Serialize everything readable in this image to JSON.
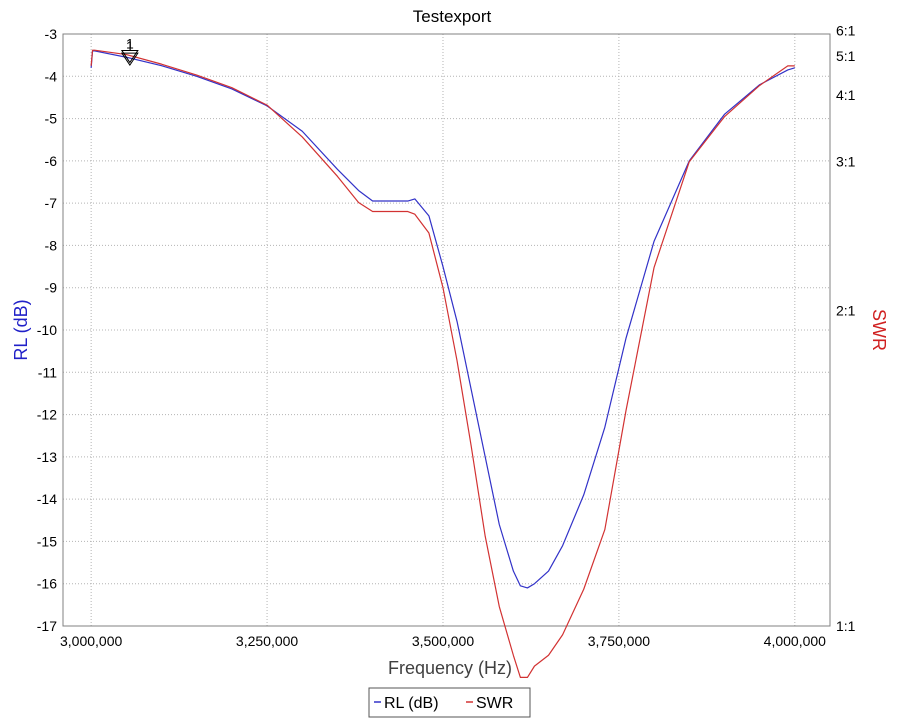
{
  "chart_data": {
    "type": "line",
    "title": "Testexport",
    "xlabel": "Frequency (Hz)",
    "ylabel_left": "RL (dB)",
    "ylabel_right": "SWR",
    "xlim": [
      2960000,
      4050000
    ],
    "ylim_left": [
      -17,
      -3
    ],
    "x_ticks": [
      3000000,
      3250000,
      3500000,
      3750000,
      4000000
    ],
    "x_tick_labels": [
      "3,000,000",
      "3,250,000",
      "3,500,000",
      "3,750,000",
      "4,000,000"
    ],
    "y_ticks_left": [
      -3,
      -4,
      -5,
      -6,
      -7,
      -8,
      -9,
      -10,
      -11,
      -12,
      -13,
      -14,
      -15,
      -16,
      -17
    ],
    "y_tick_labels_left": [
      "-3",
      "-4",
      "-5",
      "-6",
      "-7",
      "-8",
      "-9",
      "-10",
      "-11",
      "-12",
      "-13",
      "-14",
      "-15",
      "-16",
      "-17"
    ],
    "y_ticks_right": [
      6,
      5,
      4,
      3,
      2,
      1
    ],
    "y_tick_labels_right": [
      "6:1",
      "5:1",
      "4:1",
      "3:1",
      "2:1",
      "1:1"
    ],
    "grid": true,
    "legend_position": "bottom-center",
    "markers": [
      {
        "label": "1",
        "x": 3055000,
        "series": "RL (dB)"
      },
      {
        "label": "1",
        "x": 3055000,
        "series": "SWR"
      }
    ],
    "series": [
      {
        "name": "RL (dB)",
        "axis": "left",
        "color": "#3232c8",
        "x": [
          3000000,
          3002000,
          3005000,
          3050000,
          3100000,
          3150000,
          3200000,
          3250000,
          3300000,
          3350000,
          3380000,
          3400000,
          3420000,
          3450000,
          3460000,
          3480000,
          3500000,
          3520000,
          3540000,
          3560000,
          3580000,
          3600000,
          3610000,
          3620000,
          3630000,
          3650000,
          3670000,
          3700000,
          3730000,
          3760000,
          3800000,
          3850000,
          3900000,
          3950000,
          3990000,
          4000000
        ],
        "values": [
          -3.8,
          -3.4,
          -3.4,
          -3.55,
          -3.75,
          -4.0,
          -4.3,
          -4.7,
          -5.3,
          -6.2,
          -6.7,
          -6.95,
          -6.95,
          -6.95,
          -6.9,
          -7.3,
          -8.5,
          -9.8,
          -11.4,
          -13.0,
          -14.6,
          -15.7,
          -16.05,
          -16.1,
          -16.0,
          -15.7,
          -15.1,
          -13.9,
          -12.3,
          -10.2,
          -7.9,
          -6.0,
          -4.9,
          -4.2,
          -3.85,
          -3.8
        ]
      },
      {
        "name": "SWR",
        "axis": "right",
        "color": "#d23232",
        "x": [
          3000000,
          3002000,
          3005000,
          3050000,
          3100000,
          3150000,
          3200000,
          3250000,
          3300000,
          3350000,
          3380000,
          3400000,
          3420000,
          3450000,
          3460000,
          3480000,
          3500000,
          3520000,
          3540000,
          3560000,
          3580000,
          3600000,
          3610000,
          3620000,
          3630000,
          3650000,
          3670000,
          3700000,
          3730000,
          3760000,
          3800000,
          3850000,
          3900000,
          3950000,
          3990000,
          4000000
        ],
        "values": [
          4.7,
          5.2,
          5.2,
          5.05,
          4.75,
          4.45,
          4.15,
          3.8,
          3.3,
          2.85,
          2.62,
          2.55,
          2.55,
          2.55,
          2.53,
          2.4,
          2.1,
          1.82,
          1.6,
          1.44,
          1.35,
          1.3,
          1.28,
          1.28,
          1.29,
          1.3,
          1.32,
          1.37,
          1.45,
          1.68,
          2.2,
          3.0,
          3.6,
          4.2,
          4.7,
          4.7
        ]
      }
    ]
  }
}
